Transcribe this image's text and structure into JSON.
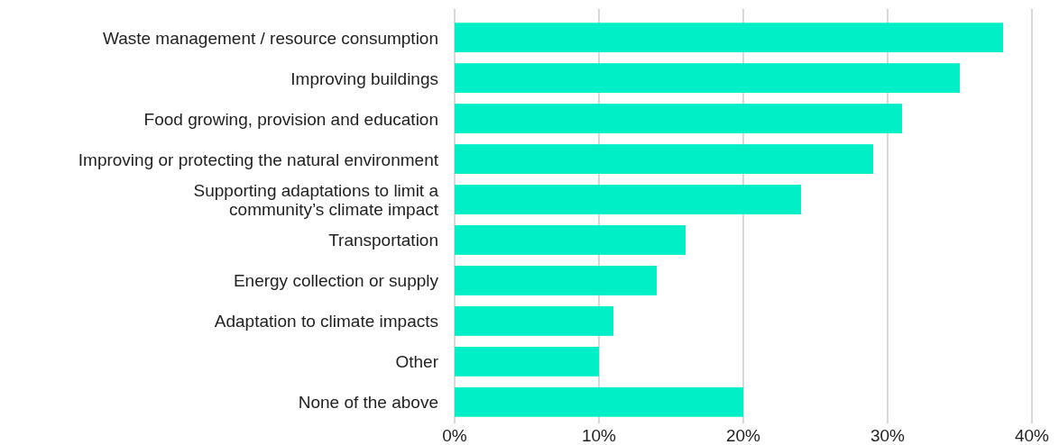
{
  "chart_data": {
    "type": "bar",
    "orientation": "horizontal",
    "categories": [
      "Waste management / resource consumption",
      "Improving buildings",
      "Food growing, provision and education",
      "Improving or protecting the natural environment",
      "Supporting adaptations to limit a community’s climate impact",
      "Transportation",
      "Energy collection or supply",
      "Adaptation to climate impacts",
      "Other",
      "None of the above"
    ],
    "values": [
      38,
      35,
      31,
      29,
      24,
      16,
      14,
      11,
      10,
      20
    ],
    "color": "#00efc6",
    "xlim": [
      0,
      40
    ],
    "xticks": [
      {
        "value": 0,
        "label": "0%"
      },
      {
        "value": 10,
        "label": "10%"
      },
      {
        "value": 20,
        "label": "20%"
      },
      {
        "value": 30,
        "label": "30%"
      },
      {
        "value": 40,
        "label": "40%"
      }
    ],
    "grid": "x"
  }
}
